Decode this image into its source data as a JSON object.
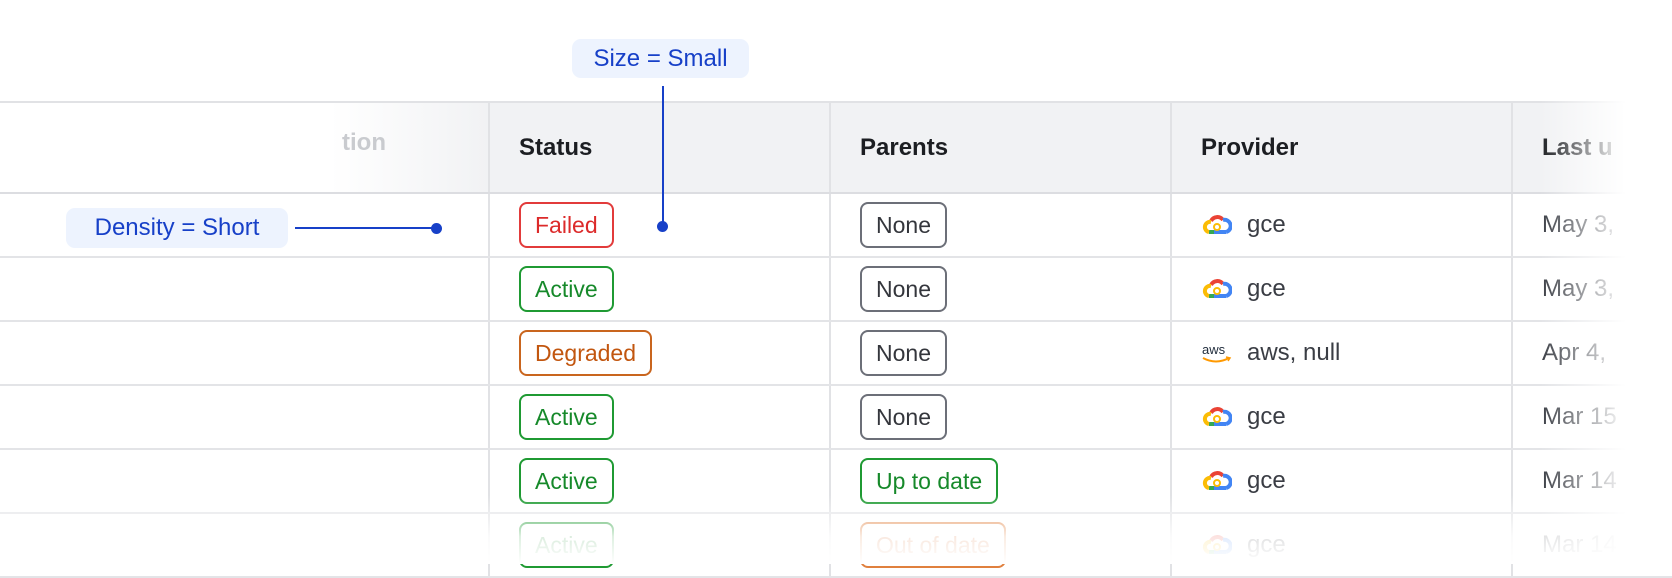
{
  "callouts": {
    "size": "Size = Small",
    "density": "Density = Short"
  },
  "columns": {
    "partial_left": "tion",
    "status": "Status",
    "parents": "Parents",
    "provider": "Provider",
    "last": "Last u"
  },
  "rows": [
    {
      "status": "Failed",
      "status_tone": "red",
      "parents": "None",
      "parents_tone": "gray",
      "provider_icon": "google-cloud-icon",
      "provider": "gce",
      "last": "May 3,"
    },
    {
      "status": "Active",
      "status_tone": "green",
      "parents": "None",
      "parents_tone": "gray",
      "provider_icon": "google-cloud-icon",
      "provider": "gce",
      "last": "May 3,"
    },
    {
      "status": "Degraded",
      "status_tone": "orange",
      "parents": "None",
      "parents_tone": "gray",
      "provider_icon": "aws-icon",
      "provider": "aws, null",
      "last": "Apr 4,"
    },
    {
      "status": "Active",
      "status_tone": "green",
      "parents": "None",
      "parents_tone": "gray",
      "provider_icon": "google-cloud-icon",
      "provider": "gce",
      "last": "Mar 15"
    },
    {
      "status": "Active",
      "status_tone": "green",
      "parents": "Up to date",
      "parents_tone": "green",
      "provider_icon": "google-cloud-icon",
      "provider": "gce",
      "last": "Mar 14"
    },
    {
      "status": "Active",
      "status_tone": "green",
      "parents": "Out of date",
      "parents_tone": "lorange",
      "provider_icon": "google-cloud-icon",
      "provider": "gce",
      "last": "Mar 14"
    }
  ],
  "colors": {
    "accent": "#1740c8",
    "callout_bg": "#edf3fe",
    "header_bg": "#f1f2f4",
    "failed": "#dc2a2a",
    "active": "#16892a",
    "degraded": "#c2560f",
    "neutral": "#6c6f78"
  }
}
